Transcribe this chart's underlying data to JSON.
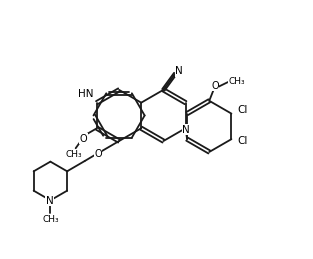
{
  "bg_color": "#ffffff",
  "line_color": "#1a1a1a",
  "line_width": 1.3,
  "figsize": [
    3.13,
    2.59
  ],
  "dpi": 100,
  "xlim": [
    0,
    10
  ],
  "ylim": [
    0,
    8.3
  ]
}
